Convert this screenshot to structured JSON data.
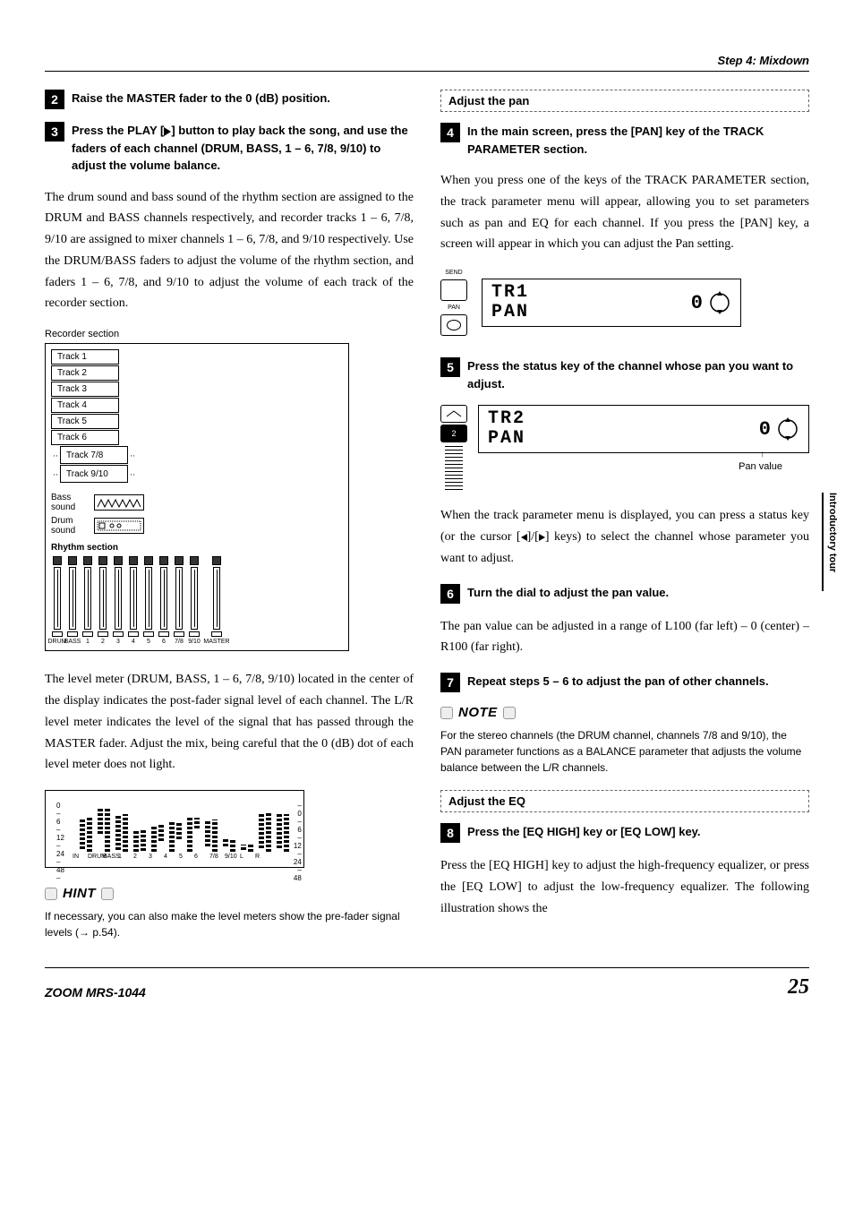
{
  "header": {
    "step_title": "Step 4: Mixdown"
  },
  "left": {
    "step2": "Raise the MASTER fader to the 0 (dB) position.",
    "step3": "Press the PLAY [▶] button to play back the song, and use the faders of each channel (DRUM, BASS, 1 – 6, 7/8, 9/10) to adjust the volume balance.",
    "para1": "The drum sound and bass sound of the rhythm section are assigned to the DRUM and BASS channels respectively, and recorder tracks 1 – 6, 7/8, 9/10 are assigned to mixer channels 1 – 6, 7/8, and 9/10 respectively. Use the DRUM/BASS faders to adjust the volume of the rhythm section, and faders 1 – 6, 7/8, and 9/10 to adjust the volume of each track of the recorder section.",
    "recorder_label": "Recorder section",
    "tracks": [
      "Track 1",
      "Track 2",
      "Track 3",
      "Track 4",
      "Track 5",
      "Track 6",
      "Track 7/8",
      "Track 9/10"
    ],
    "bass_label": "Bass sound",
    "drum_label": "Drum sound",
    "rhythm_label": "Rhythm section",
    "fader_labels": [
      "DRUM",
      "BASS",
      "1",
      "2",
      "3",
      "4",
      "5",
      "6",
      "7/8",
      "9/10",
      "MASTER"
    ],
    "para2": "The level meter (DRUM, BASS, 1 – 6, 7/8, 9/10) located in the center of the display indicates the post-fader signal level of each channel. The L/R level meter indicates the level of the signal that has passed through the MASTER fader. Adjust the mix, being careful that the 0 (dB) dot of each level meter does not light.",
    "meter_scale": [
      "0 –",
      "6 –",
      "12 –",
      "24 –",
      "48 –"
    ],
    "meter_scale_r": [
      "– 0",
      "– 6",
      "– 12",
      "– 24",
      "– 48"
    ],
    "meter_labels": [
      "IN",
      "DRUM",
      "BASS",
      "1",
      "2",
      "3",
      "4",
      "5",
      "6",
      "7/8",
      "9/10",
      "L",
      "R"
    ],
    "hint_title": "HINT",
    "hint_body": "If necessary, you can also make the level meters show the pre-fader signal levels (→ p.54)."
  },
  "right": {
    "adjust_pan": "Adjust the pan",
    "step4": "In the main screen, press the [PAN] key of the TRACK PARAMETER section.",
    "para3": "When you press one of the keys of the TRACK PARAMETER section, the track parameter menu will appear, allowing you to set parameters such as pan and EQ for each channel. If you press the [PAN] key, a screen will appear in which you can adjust the Pan setting.",
    "lcd1_line1": "TR1",
    "lcd1_line2": "PAN",
    "lcd1_val": "0",
    "send_label": "SEND",
    "pan_label": "PAN",
    "step5": "Press the status key of the channel whose pan you want to adjust.",
    "lcd2_line1": "TR2",
    "lcd2_line2": "PAN",
    "lcd2_val": "0",
    "status_num": "2",
    "pan_value_label": "Pan value",
    "para4a": "When the track parameter menu is displayed, you can press a status key (or the cursor [",
    "para4b": "]/[",
    "para4c": "] keys) to select the channel whose parameter you want to adjust.",
    "step6": "Turn the dial to adjust the pan value.",
    "para5": "The pan value can be adjusted in a range of L100 (far left) – 0 (center) – R100 (far right).",
    "step7": "Repeat steps 5 – 6 to adjust the pan of other channels.",
    "note_title": "NOTE",
    "note_body": "For the stereo channels (the DRUM channel, channels 7/8 and 9/10), the PAN parameter functions as a BALANCE parameter that adjusts the volume balance between the L/R channels.",
    "adjust_eq": "Adjust the EQ",
    "step8": "Press the [EQ HIGH] key or [EQ LOW] key.",
    "para6": "Press the [EQ HIGH] key to adjust the high-frequency equalizer, or press the [EQ LOW] to adjust the low-frequency equalizer. The following illustration shows the"
  },
  "side_tab": "Introductory tour",
  "footer": {
    "model": "ZOOM MRS-1044",
    "page": "25"
  },
  "meter_heights": [
    0,
    0,
    35,
    38,
    30,
    50,
    40,
    42,
    25,
    24,
    30,
    18,
    34,
    20,
    38,
    12,
    30,
    36,
    8,
    14,
    6,
    8,
    40,
    44,
    38,
    42
  ]
}
